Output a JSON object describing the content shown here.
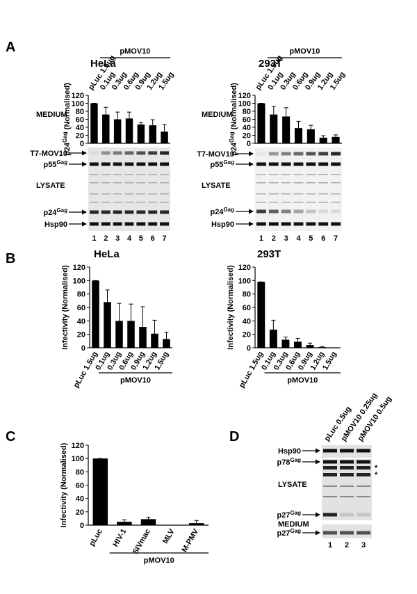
{
  "panel_letters": [
    "A",
    "B",
    "C",
    "D"
  ],
  "chart_data": [
    {
      "type": "bar",
      "title": "HeLa",
      "side_label": "MEDIUM",
      "y_label": {
        "text": "p24",
        "sup": "Gag",
        "after": " (Normalised)"
      },
      "categories": [
        "pLuc 1.5ug",
        "0.1ug",
        "0.3ug",
        "0.6ug",
        "0.9ug",
        "1.2ug",
        "1.5ug"
      ],
      "group_label": "pMOV10",
      "values": [
        100,
        72,
        60,
        62,
        47,
        45,
        29
      ],
      "errors": [
        0,
        18,
        18,
        16,
        5,
        14,
        18
      ],
      "ylim": [
        0,
        120
      ],
      "yticks": [
        0,
        20,
        40,
        60,
        80,
        100,
        120
      ]
    },
    {
      "type": "bar",
      "title": "293T",
      "side_label": "MEDIUM",
      "y_label": {
        "text": "p24",
        "sup": "Gag",
        "after": " (Normalised)"
      },
      "categories": [
        "pLuc 1.5ug",
        "0.1ug",
        "0.3ug",
        "0.6ug",
        "0.9ug",
        "1.2ug",
        "1.5ug"
      ],
      "group_label": "pMOV10",
      "values": [
        100,
        72,
        67,
        38,
        35,
        14,
        16
      ],
      "errors": [
        0,
        20,
        22,
        17,
        10,
        5,
        5
      ],
      "ylim": [
        0,
        120
      ],
      "yticks": [
        0,
        20,
        40,
        60,
        80,
        100,
        120
      ]
    },
    {
      "type": "bar",
      "title": "HeLa",
      "y_label": {
        "text": "Infectivity (Normalised)"
      },
      "categories": [
        "pLuc 1.5ug",
        "0.1ug",
        "0.3ug",
        "0.6ug",
        "0.9ug",
        "1.2ug",
        "1.5ug"
      ],
      "group_label": "pMOV10",
      "values": [
        100,
        68,
        40,
        40,
        31,
        21,
        13
      ],
      "errors": [
        0,
        18,
        26,
        25,
        30,
        20,
        10
      ],
      "ylim": [
        0,
        120
      ],
      "yticks": [
        0,
        20,
        40,
        60,
        80,
        100,
        120
      ]
    },
    {
      "type": "bar",
      "title": "293T",
      "y_label": {
        "text": "Infectivity (Normalised)"
      },
      "categories": [
        "pLuc 1.5ug",
        "0.1ug",
        "0.3ug",
        "0.6ug",
        "0.9ug",
        "1.2ug",
        "1.5ug"
      ],
      "group_label": "pMOV10",
      "values": [
        98,
        27,
        12,
        9,
        4,
        1,
        0
      ],
      "errors": [
        0,
        14,
        4,
        5,
        3,
        1,
        0
      ],
      "ylim": [
        0,
        120
      ],
      "yticks": [
        0,
        20,
        40,
        60,
        80,
        100,
        120
      ]
    },
    {
      "type": "bar",
      "y_label": {
        "text": "Infectivity (Normalised)"
      },
      "categories": [
        "pLuc",
        "HIV-1",
        "SIVmac",
        "MLV",
        "M-PMV"
      ],
      "group_label": "pMOV10",
      "values": [
        100,
        5,
        9,
        0,
        3
      ],
      "errors": [
        0,
        3,
        3,
        0,
        4
      ],
      "ylim": [
        0,
        120
      ],
      "yticks": [
        0,
        20,
        40,
        60,
        80,
        100,
        120
      ]
    }
  ],
  "blots": [
    {
      "labels": [
        {
          "text": "T7-MOV10"
        },
        {
          "text": "p55",
          "sup": "Gag"
        },
        {
          "text": "p24",
          "sup": "Gag"
        },
        {
          "text": "Hsp90"
        }
      ],
      "side_labels": [
        "LYSATE"
      ],
      "lanes": [
        "1",
        "2",
        "3",
        "4",
        "5",
        "6",
        "7"
      ]
    },
    {
      "labels": [
        {
          "text": "T7-MOV10"
        },
        {
          "text": "p55",
          "sup": "Gag"
        },
        {
          "text": "p24",
          "sup": "Gag"
        },
        {
          "text": "Hsp90"
        }
      ],
      "side_labels": [
        "LYSATE"
      ],
      "lanes": [
        "1",
        "2",
        "3",
        "4",
        "5",
        "6",
        "7"
      ]
    },
    {
      "columns": [
        "pLuc 0.5ug",
        "pMOV10 0.25ug",
        "pMOV10 0.5ug"
      ],
      "labels": [
        {
          "text": "Hsp90"
        },
        {
          "text": "p78",
          "sup": "Gag"
        },
        {
          "text": "p27",
          "sup": "Gag"
        },
        {
          "text": "p27",
          "sup": "Gag"
        }
      ],
      "side_labels": [
        "LYSATE",
        "MEDIUM"
      ],
      "marks": [
        "*",
        "*"
      ],
      "lanes": [
        "1",
        "2",
        "3"
      ]
    }
  ]
}
